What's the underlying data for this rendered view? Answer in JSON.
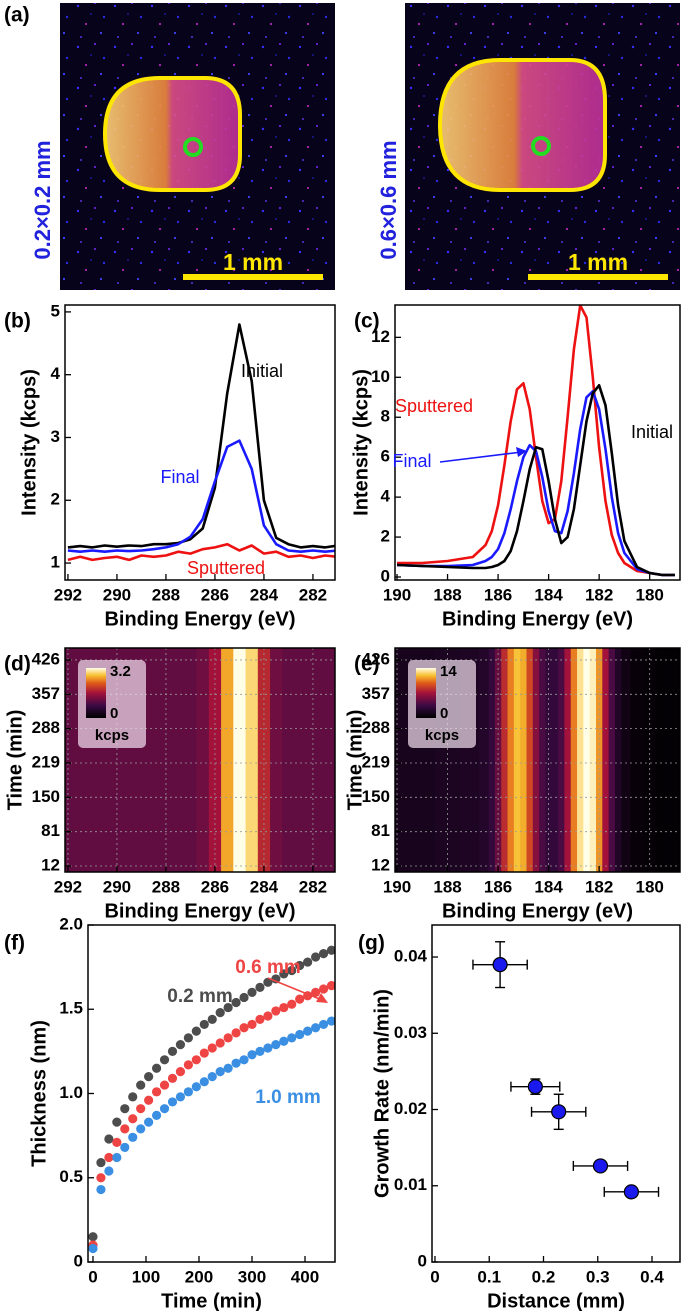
{
  "panel_a": {
    "label": "(a)",
    "images": [
      {
        "size": "0.2×0.2 mm",
        "scale": "1 mm"
      },
      {
        "size": "0.6×0.6 mm",
        "scale": "1 mm"
      }
    ]
  },
  "chart_data": [
    {
      "type": "line",
      "panel_label": "(b)",
      "xlabel": "Binding Energy (eV)",
      "ylabel": "Intensity (kcps)",
      "xlim": [
        292.12,
        281.1
      ],
      "xticks": [
        292,
        290,
        288,
        286,
        284,
        282
      ],
      "ylim": [
        0.73,
        5.11
      ],
      "yticks": [
        1,
        2,
        3,
        4,
        5
      ],
      "x": [
        292,
        291.5,
        291,
        290.5,
        290,
        289.5,
        289,
        288.5,
        288,
        287.5,
        287,
        286.5,
        286,
        285.5,
        285,
        284.5,
        284,
        283.5,
        283,
        282.5,
        282,
        281.5,
        281
      ],
      "series": [
        {
          "name": "Initial",
          "color": "#000000",
          "values": [
            1.25,
            1.27,
            1.25,
            1.28,
            1.26,
            1.28,
            1.27,
            1.3,
            1.3,
            1.32,
            1.38,
            1.55,
            2.2,
            3.7,
            4.8,
            3.9,
            2.0,
            1.4,
            1.3,
            1.25,
            1.27,
            1.25,
            1.28
          ]
        },
        {
          "name": "Final",
          "color": "#1a1aff",
          "values": [
            1.2,
            1.18,
            1.2,
            1.18,
            1.2,
            1.19,
            1.2,
            1.22,
            1.25,
            1.3,
            1.42,
            1.7,
            2.3,
            2.85,
            2.95,
            2.5,
            1.6,
            1.3,
            1.2,
            1.18,
            1.2,
            1.18,
            1.2
          ]
        },
        {
          "name": "Sputtered",
          "color": "#ee1111",
          "values": [
            1.05,
            1.1,
            1.05,
            1.08,
            1.1,
            1.05,
            1.12,
            1.1,
            1.12,
            1.18,
            1.15,
            1.22,
            1.25,
            1.3,
            1.2,
            1.28,
            1.15,
            1.18,
            1.1,
            1.12,
            1.08,
            1.12,
            1.1
          ]
        }
      ]
    },
    {
      "type": "line",
      "panel_label": "(c)",
      "xlabel": "Binding Energy (eV)",
      "ylabel": "Intensity (kcps)",
      "xlim": [
        190.08,
        178.8
      ],
      "xticks": [
        190,
        188,
        186,
        184,
        182,
        180
      ],
      "ylim": [
        -0.15,
        13.62
      ],
      "yticks": [
        0,
        2,
        4,
        6,
        8,
        10,
        12
      ],
      "x": [
        190,
        189,
        188,
        187,
        186.5,
        186.25,
        186,
        185.75,
        185.5,
        185.25,
        185,
        184.75,
        184.5,
        184.25,
        184,
        183.75,
        183.5,
        183.25,
        183,
        182.75,
        182.5,
        182.25,
        182,
        181.75,
        181.5,
        181.25,
        181,
        180.5,
        180,
        179.5,
        179
      ],
      "series": [
        {
          "name": "Sputtered",
          "color": "#ee1111",
          "values": [
            0.7,
            0.7,
            0.8,
            1.0,
            1.6,
            2.3,
            3.6,
            5.6,
            7.8,
            9.4,
            9.7,
            8.4,
            6.0,
            3.8,
            2.7,
            2.9,
            4.8,
            8.0,
            11.4,
            13.6,
            13.0,
            10.0,
            6.5,
            3.8,
            2.1,
            1.2,
            0.7,
            0.3,
            0.2,
            0.1,
            0.1
          ]
        },
        {
          "name": "Final",
          "color": "#1a1aff",
          "values": [
            0.6,
            0.55,
            0.55,
            0.6,
            0.8,
            1.0,
            1.4,
            2.2,
            3.4,
            4.8,
            6.0,
            6.6,
            6.3,
            5.0,
            3.3,
            2.3,
            2.2,
            3.3,
            5.2,
            7.4,
            9.0,
            9.3,
            8.4,
            6.4,
            4.0,
            2.2,
            1.2,
            0.4,
            0.2,
            0.1,
            0.1
          ]
        },
        {
          "name": "Initial",
          "color": "#000000",
          "values": [
            0.6,
            0.55,
            0.5,
            0.45,
            0.45,
            0.5,
            0.6,
            0.8,
            1.3,
            2.3,
            3.8,
            5.4,
            6.5,
            6.4,
            4.8,
            2.9,
            1.7,
            2.0,
            3.4,
            5.6,
            7.8,
            9.2,
            9.6,
            8.6,
            6.2,
            3.6,
            1.8,
            0.5,
            0.2,
            0.1,
            0.1
          ]
        }
      ]
    },
    {
      "type": "heatmap",
      "panel_label": "(d)",
      "xlabel": "Binding Energy (eV)",
      "ylabel": "Time (min)",
      "grid": true,
      "xlim": [
        292.12,
        281.1
      ],
      "xticks": [
        292,
        290,
        288,
        286,
        284,
        282
      ],
      "ylim": [
        0,
        450
      ],
      "yticks": [
        12,
        81,
        150,
        219,
        288,
        357,
        426
      ],
      "colorbar": {
        "min": 0,
        "max": 3.2,
        "label": "kcps"
      },
      "x": [
        292,
        291.5,
        291,
        290.5,
        290,
        289.5,
        289,
        288.5,
        288,
        287.5,
        287,
        286.5,
        286,
        285.5,
        285,
        284.5,
        284,
        283.5,
        283,
        282.5,
        282,
        281.5,
        281
      ],
      "values": [
        1.1,
        1.1,
        1.1,
        1.1,
        1.1,
        1.1,
        1.1,
        1.1,
        1.1,
        1.1,
        1.1,
        1.2,
        1.6,
        2.6,
        3.2,
        2.9,
        1.8,
        1.2,
        1.1,
        1.1,
        1.1,
        1.1,
        1.1
      ]
    },
    {
      "type": "heatmap",
      "panel_label": "(e)",
      "xlabel": "Binding Energy (eV)",
      "ylabel": "Time (min)",
      "grid": true,
      "xlim": [
        190.08,
        178.8
      ],
      "xticks": [
        190,
        188,
        186,
        184,
        182,
        180
      ],
      "ylim": [
        0,
        450
      ],
      "yticks": [
        12,
        81,
        150,
        219,
        288,
        357,
        426
      ],
      "colorbar": {
        "min": 0,
        "max": 14,
        "label": "kcps"
      },
      "x": [
        190,
        189,
        188,
        187,
        186.5,
        186.25,
        186,
        185.75,
        185.5,
        185.25,
        185,
        184.75,
        184.5,
        184.25,
        184,
        183.75,
        183.5,
        183.25,
        183,
        182.75,
        182.5,
        182.25,
        182,
        181.75,
        181.5,
        181.25,
        181,
        180.5,
        180,
        179.5,
        179
      ],
      "values": [
        1.5,
        1.5,
        1.6,
        1.8,
        2.2,
        3,
        5,
        8,
        10.5,
        12,
        11.5,
        9,
        6,
        4,
        3,
        3,
        4,
        7,
        10.5,
        13,
        14,
        13.5,
        11,
        7,
        4,
        2,
        1,
        0.5,
        0.3,
        0.2,
        0.2
      ]
    },
    {
      "type": "scatter",
      "panel_label": "(f)",
      "xlabel": "Time (min)",
      "ylabel": "Thickness (nm)",
      "xlim": [
        -9.4,
        456.6
      ],
      "xticks": [
        0,
        100,
        200,
        300,
        400
      ],
      "ylim": [
        0,
        2
      ],
      "yticks": [
        0,
        0.5,
        {
          "value": 1,
          "label": "1.0"
        },
        1.5,
        {
          "value": 2,
          "label": "2.0"
        }
      ],
      "x": [
        0,
        15,
        30,
        45,
        60,
        75,
        90,
        105,
        120,
        135,
        150,
        165,
        180,
        195,
        210,
        225,
        240,
        255,
        270,
        285,
        300,
        315,
        330,
        345,
        360,
        375,
        390,
        405,
        420,
        435,
        450
      ],
      "series": [
        {
          "name": "0.2 mm",
          "color": "#4d4d4d",
          "values": [
            0.15,
            0.59,
            0.73,
            0.83,
            0.91,
            0.98,
            1.05,
            1.1,
            1.15,
            1.2,
            1.25,
            1.29,
            1.33,
            1.37,
            1.41,
            1.44,
            1.48,
            1.51,
            1.54,
            1.57,
            1.6,
            1.63,
            1.66,
            1.68,
            1.71,
            1.73,
            1.76,
            1.78,
            1.81,
            1.83,
            1.85
          ]
        },
        {
          "name": "0.6 mm",
          "color": "#ef4444",
          "values": [
            0.1,
            0.5,
            0.62,
            0.71,
            0.79,
            0.85,
            0.91,
            0.96,
            1.01,
            1.05,
            1.09,
            1.13,
            1.17,
            1.2,
            1.24,
            1.27,
            1.3,
            1.33,
            1.36,
            1.39,
            1.41,
            1.44,
            1.46,
            1.49,
            1.51,
            1.53,
            1.56,
            1.58,
            1.6,
            1.62,
            1.64
          ]
        },
        {
          "name": "1.0 mm",
          "color": "#3b8fe3",
          "values": [
            0.08,
            0.43,
            0.54,
            0.62,
            0.68,
            0.74,
            0.79,
            0.83,
            0.87,
            0.91,
            0.95,
            0.98,
            1.01,
            1.04,
            1.07,
            1.1,
            1.13,
            1.15,
            1.18,
            1.2,
            1.23,
            1.25,
            1.27,
            1.29,
            1.31,
            1.33,
            1.35,
            1.37,
            1.39,
            1.41,
            1.43
          ]
        }
      ]
    },
    {
      "type": "scatter",
      "panel_label": "(g)",
      "xlabel": "Distance (mm)",
      "ylabel": "Growth Rate (nm/min)",
      "color": "#1a1aee",
      "xlim": [
        -0.0055,
        0.4516
      ],
      "xticks": [
        0,
        0.1,
        0.2,
        0.3,
        0.4
      ],
      "ylim": [
        0,
        0.0442
      ],
      "yticks": [
        0,
        0.01,
        0.02,
        0.03,
        0.04
      ],
      "x": [
        0.12,
        0.185,
        0.228,
        0.305,
        0.362
      ],
      "values": [
        0.039,
        0.023,
        0.0197,
        0.0126,
        0.0092
      ],
      "xerr": [
        0.05,
        0.045,
        0.05,
        0.05,
        0.05
      ],
      "yerr": [
        0.003,
        0.001,
        0.0023,
        0.0005,
        0.0005
      ]
    }
  ]
}
